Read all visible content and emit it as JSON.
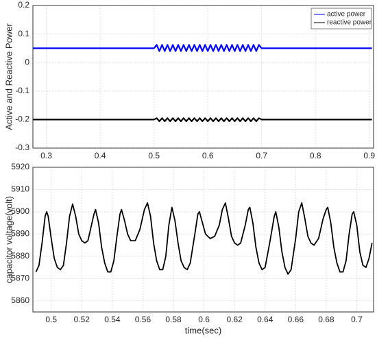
{
  "chart_data": [
    {
      "type": "line",
      "ylabel": "Active and Reactive Power",
      "x": [
        0.275,
        0.3,
        0.325,
        0.35,
        0.375,
        0.4,
        0.425,
        0.45,
        0.475,
        0.5,
        0.505,
        0.51,
        0.515,
        0.52,
        0.525,
        0.53,
        0.535,
        0.54,
        0.545,
        0.55,
        0.555,
        0.56,
        0.565,
        0.57,
        0.575,
        0.58,
        0.585,
        0.59,
        0.595,
        0.6,
        0.605,
        0.61,
        0.615,
        0.62,
        0.625,
        0.63,
        0.635,
        0.64,
        0.645,
        0.65,
        0.655,
        0.66,
        0.665,
        0.67,
        0.675,
        0.68,
        0.685,
        0.69,
        0.695,
        0.7,
        0.73,
        0.76,
        0.79,
        0.82,
        0.85,
        0.88,
        0.905
      ],
      "series": [
        {
          "name": "active power",
          "color": "#0000ff",
          "values": [
            0.05,
            0.05,
            0.05,
            0.05,
            0.05,
            0.05,
            0.05,
            0.05,
            0.05,
            0.05,
            0.062,
            0.04,
            0.062,
            0.04,
            0.062,
            0.04,
            0.062,
            0.04,
            0.062,
            0.04,
            0.062,
            0.04,
            0.062,
            0.04,
            0.062,
            0.04,
            0.062,
            0.04,
            0.062,
            0.04,
            0.062,
            0.04,
            0.062,
            0.04,
            0.062,
            0.04,
            0.062,
            0.04,
            0.062,
            0.04,
            0.062,
            0.04,
            0.062,
            0.04,
            0.062,
            0.04,
            0.062,
            0.04,
            0.062,
            0.05,
            0.05,
            0.05,
            0.05,
            0.05,
            0.05,
            0.05,
            0.05
          ]
        },
        {
          "name": "reactive power",
          "color": "#000000",
          "values": [
            -0.2,
            -0.2,
            -0.2,
            -0.2,
            -0.2,
            -0.2,
            -0.2,
            -0.2,
            -0.2,
            -0.2,
            -0.195,
            -0.206,
            -0.195,
            -0.206,
            -0.195,
            -0.206,
            -0.195,
            -0.206,
            -0.195,
            -0.206,
            -0.195,
            -0.206,
            -0.195,
            -0.206,
            -0.195,
            -0.206,
            -0.195,
            -0.206,
            -0.195,
            -0.206,
            -0.195,
            -0.206,
            -0.195,
            -0.206,
            -0.195,
            -0.206,
            -0.195,
            -0.206,
            -0.195,
            -0.206,
            -0.195,
            -0.206,
            -0.195,
            -0.206,
            -0.195,
            -0.206,
            -0.195,
            -0.206,
            -0.195,
            -0.2,
            -0.2,
            -0.2,
            -0.2,
            -0.2,
            -0.2,
            -0.2,
            -0.2
          ]
        }
      ],
      "xlim": [
        0.275,
        0.908
      ],
      "ylim": [
        -0.3,
        0.2
      ],
      "xticks": [
        0.3,
        0.4,
        0.5,
        0.6,
        0.7,
        0.8,
        0.9
      ],
      "yticks": [
        -0.3,
        -0.2,
        -0.1,
        0,
        0.1,
        0.2
      ],
      "grid": true,
      "legend": "upper right"
    },
    {
      "type": "line",
      "ylabel": "capacitor voltage(volt)",
      "xlabel": "time(sec)",
      "x": [
        0.49,
        0.492,
        0.494,
        0.496,
        0.497,
        0.498,
        0.5,
        0.502,
        0.504,
        0.506,
        0.508,
        0.51,
        0.512,
        0.514,
        0.516,
        0.518,
        0.52,
        0.522,
        0.524,
        0.526,
        0.528,
        0.529,
        0.531,
        0.533,
        0.535,
        0.537,
        0.539,
        0.541,
        0.543,
        0.545,
        0.546,
        0.548,
        0.55,
        0.552,
        0.555,
        0.558,
        0.561,
        0.563,
        0.565,
        0.567,
        0.569,
        0.571,
        0.573,
        0.575,
        0.577,
        0.579,
        0.581,
        0.583,
        0.585,
        0.587,
        0.589,
        0.591,
        0.594,
        0.596,
        0.597,
        0.599,
        0.601,
        0.604,
        0.607,
        0.61,
        0.612,
        0.614,
        0.616,
        0.618,
        0.62,
        0.622,
        0.624,
        0.627,
        0.629,
        0.63,
        0.632,
        0.634,
        0.636,
        0.638,
        0.64,
        0.643,
        0.646,
        0.647,
        0.649,
        0.651,
        0.653,
        0.655,
        0.657,
        0.66,
        0.662,
        0.664,
        0.666,
        0.668,
        0.67,
        0.672,
        0.675,
        0.678,
        0.68,
        0.681,
        0.683,
        0.685,
        0.687,
        0.689,
        0.691,
        0.693,
        0.695,
        0.697,
        0.698,
        0.7,
        0.702,
        0.704,
        0.706,
        0.708,
        0.71
      ],
      "values": [
        5873,
        5876,
        5886,
        5898,
        5900,
        5898,
        5888,
        5879,
        5875,
        5874,
        5876,
        5886,
        5898,
        5903.5,
        5898,
        5890,
        5887,
        5886,
        5887,
        5893,
        5899,
        5901,
        5895,
        5884,
        5877,
        5873,
        5873,
        5878,
        5889,
        5899,
        5901,
        5896,
        5890,
        5887,
        5887,
        5892,
        5901,
        5904,
        5898,
        5886,
        5878,
        5874,
        5874,
        5880,
        5894,
        5902,
        5896,
        5886,
        5878,
        5875,
        5874,
        5877,
        5890,
        5899,
        5900,
        5895,
        5890,
        5888,
        5889,
        5894,
        5901,
        5904,
        5897,
        5889,
        5886,
        5885,
        5886,
        5894,
        5901,
        5902,
        5895,
        5884,
        5877,
        5874,
        5875,
        5886,
        5898,
        5900,
        5893,
        5882,
        5875,
        5872,
        5874,
        5888,
        5900,
        5904,
        5897,
        5889,
        5886,
        5885,
        5888,
        5897,
        5901,
        5902,
        5895,
        5884,
        5877,
        5873,
        5873,
        5878,
        5890,
        5899,
        5900,
        5894,
        5882,
        5876,
        5875,
        5879,
        5886
      ],
      "color": "#000000",
      "xlim": [
        0.488,
        0.711
      ],
      "ylim": [
        5855,
        5920
      ],
      "xticks": [
        0.5,
        0.52,
        0.54,
        0.56,
        0.58,
        0.6,
        0.62,
        0.64,
        0.66,
        0.68,
        0.7
      ],
      "yticks": [
        5860,
        5870,
        5880,
        5890,
        5900,
        5910,
        5920
      ],
      "grid": true
    }
  ]
}
